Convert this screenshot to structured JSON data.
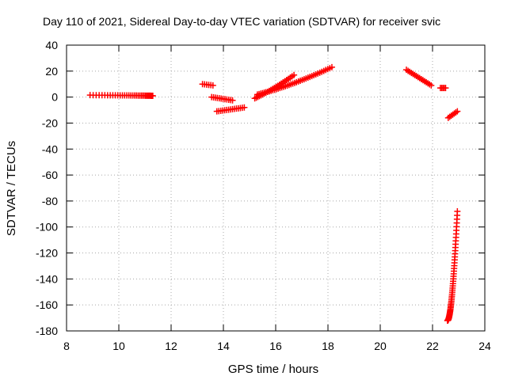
{
  "chart_data": {
    "type": "scatter",
    "title": "Day 110 of 2021, Sidereal Day-to-day VTEC variation (SDTVAR) for receiver svic",
    "xlabel": "GPS time / hours",
    "ylabel": "SDTVAR / TECUs",
    "xlim": [
      8,
      24
    ],
    "ylim": [
      -180,
      40
    ],
    "xticks": [
      "8",
      "10",
      "12",
      "14",
      "16",
      "18",
      "20",
      "22",
      "24"
    ],
    "yticks": [
      "40",
      "20",
      "0",
      "-20",
      "-40",
      "-60",
      "-80",
      "-100",
      "-120",
      "-140",
      "-160",
      "-180"
    ],
    "grid": true,
    "marker": "plus",
    "color": "#ff0000",
    "segments": [
      {
        "x": [
          8.9,
          11.3
        ],
        "y": [
          1.5,
          1.0
        ],
        "curve": [
          0.8,
          0.5
        ]
      },
      {
        "x": [
          13.2,
          13.6
        ],
        "y": [
          10,
          9
        ]
      },
      {
        "x": [
          13.55,
          14.35
        ],
        "y": [
          0,
          -2.5
        ]
      },
      {
        "x": [
          13.75,
          14.8
        ],
        "y": [
          -11,
          -8
        ]
      },
      {
        "x": [
          15.2,
          16.7
        ],
        "y": [
          -1,
          17
        ],
        "curve": [
          0.45,
          0.35
        ]
      },
      {
        "x": [
          15.3,
          18.15
        ],
        "y": [
          2,
          23
        ],
        "curve": [
          0.45,
          0.3
        ]
      },
      {
        "x": [
          21.0,
          21.95
        ],
        "y": [
          21,
          9
        ]
      },
      {
        "x": [
          22.3,
          22.5
        ],
        "y": [
          7,
          7
        ]
      },
      {
        "x": [
          22.6,
          22.95
        ],
        "y": [
          -16,
          -11
        ]
      },
      {
        "x": [
          22.57,
          22.95
        ],
        "y": [
          -172,
          -88
        ],
        "curve": [
          0.45,
          0.0
        ]
      }
    ]
  }
}
